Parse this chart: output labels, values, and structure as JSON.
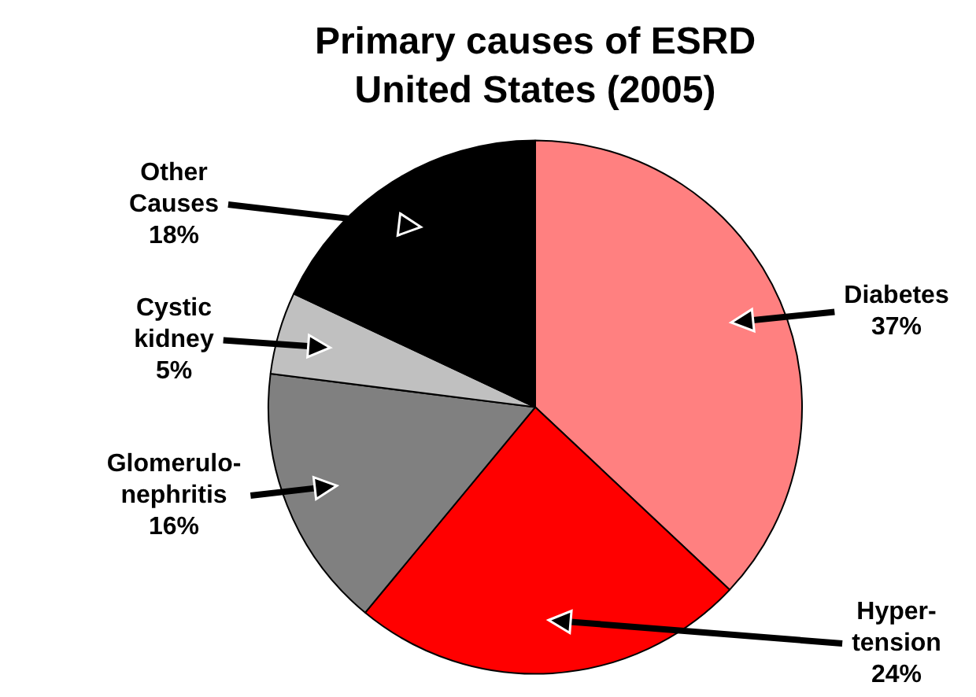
{
  "chart_data": {
    "type": "pie",
    "title": "Primary causes of ESRD",
    "subtitle": "United States (2005)",
    "categories": [
      "Diabetes",
      "Hyper-\ntension",
      "Glomerulo-\nnephritis",
      "Cystic\nkidney",
      "Other\nCauses"
    ],
    "values": [
      37,
      24,
      16,
      5,
      18
    ],
    "colors": [
      "#ff8080",
      "#ff0000",
      "#808080",
      "#c0c0c0",
      "#000000"
    ],
    "value_labels": [
      "37%",
      "24%",
      "16%",
      "5%",
      "18%"
    ]
  }
}
